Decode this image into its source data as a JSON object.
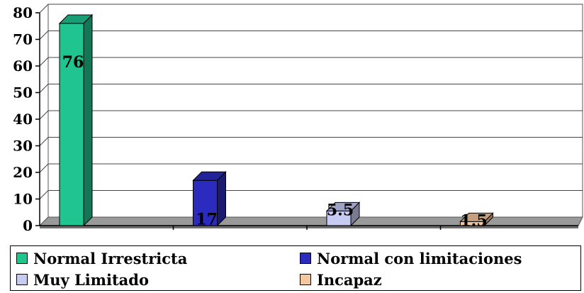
{
  "chart_data": {
    "type": "bar",
    "categories": [
      "Normal Irrestricta",
      "Normal con limitaciones",
      "Muy Limitado",
      "Incapaz"
    ],
    "values": [
      76,
      17,
      5.5,
      1.5
    ],
    "value_labels": [
      "76",
      "17",
      "5.5",
      "1.5"
    ],
    "colors": [
      "#1fc48e",
      "#2b2bc0",
      "#c7cbf2",
      "#f5c79c"
    ],
    "ylim": [
      0,
      80
    ],
    "yticks": [
      "0",
      "10",
      "20",
      "30",
      "40",
      "50",
      "60",
      "70",
      "80"
    ],
    "title": "",
    "xlabel": "",
    "ylabel": "",
    "grid": true,
    "style": "3d",
    "legend_placement": "bottom"
  }
}
